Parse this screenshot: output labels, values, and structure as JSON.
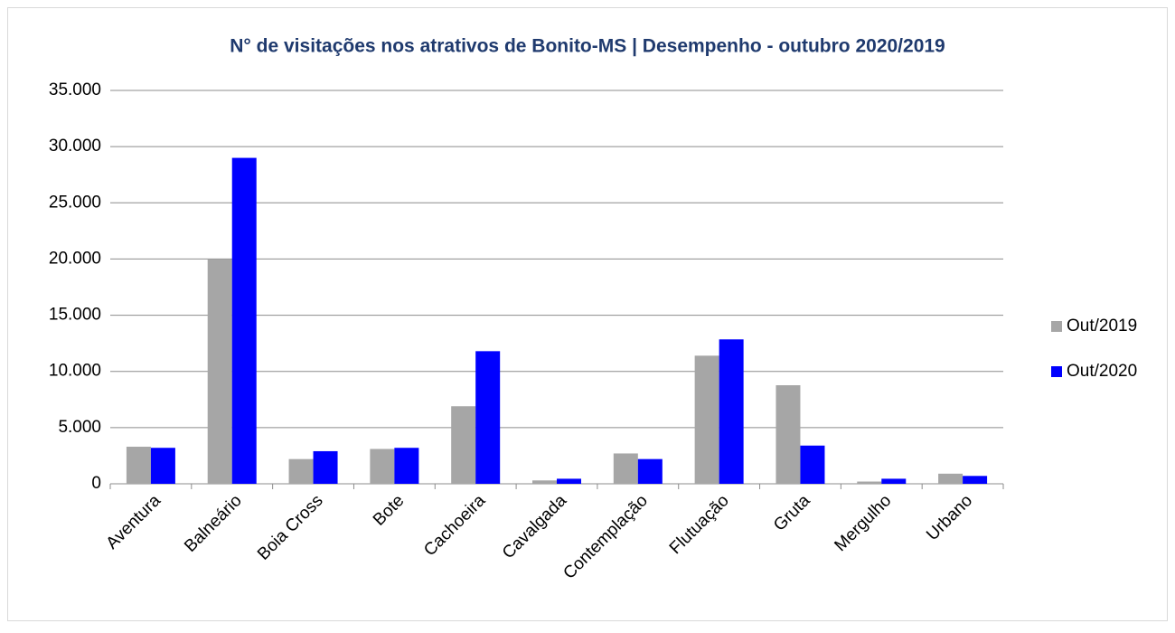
{
  "chart_data": {
    "type": "bar",
    "title": "N° de visitações nos atrativos de Bonito-MS | Desempenho - outubro 2020/2019",
    "categories": [
      "Aventura",
      "Balneário",
      "Boia Cross",
      "Bote",
      "Cachoeira",
      "Cavalgada",
      "Contemplação",
      "Flutuação",
      "Gruta",
      "Mergulho",
      "Urbano"
    ],
    "series": [
      {
        "name": "Out/2019",
        "color": "#a6a6a6",
        "values": [
          3300,
          20000,
          2200,
          3100,
          6900,
          300,
          2700,
          11400,
          8770,
          200,
          900
        ]
      },
      {
        "name": "Out/2020",
        "color": "#0000ff",
        "values": [
          3200,
          29000,
          2900,
          3200,
          11800,
          450,
          2200,
          12850,
          3400,
          450,
          700
        ]
      }
    ],
    "ylim": [
      0,
      35000
    ],
    "yticks": [
      0,
      {
        "value": 5000,
        "label": "5.000"
      },
      {
        "value": 10000,
        "label": "10.000"
      },
      {
        "value": 15000,
        "label": "15.000"
      },
      {
        "value": 20000,
        "label": "20.000"
      },
      {
        "value": 25000,
        "label": "25.000"
      },
      {
        "value": 30000,
        "label": "30.000"
      },
      {
        "value": 35000,
        "label": "35.000"
      }
    ],
    "grid": true,
    "legend": "right"
  }
}
